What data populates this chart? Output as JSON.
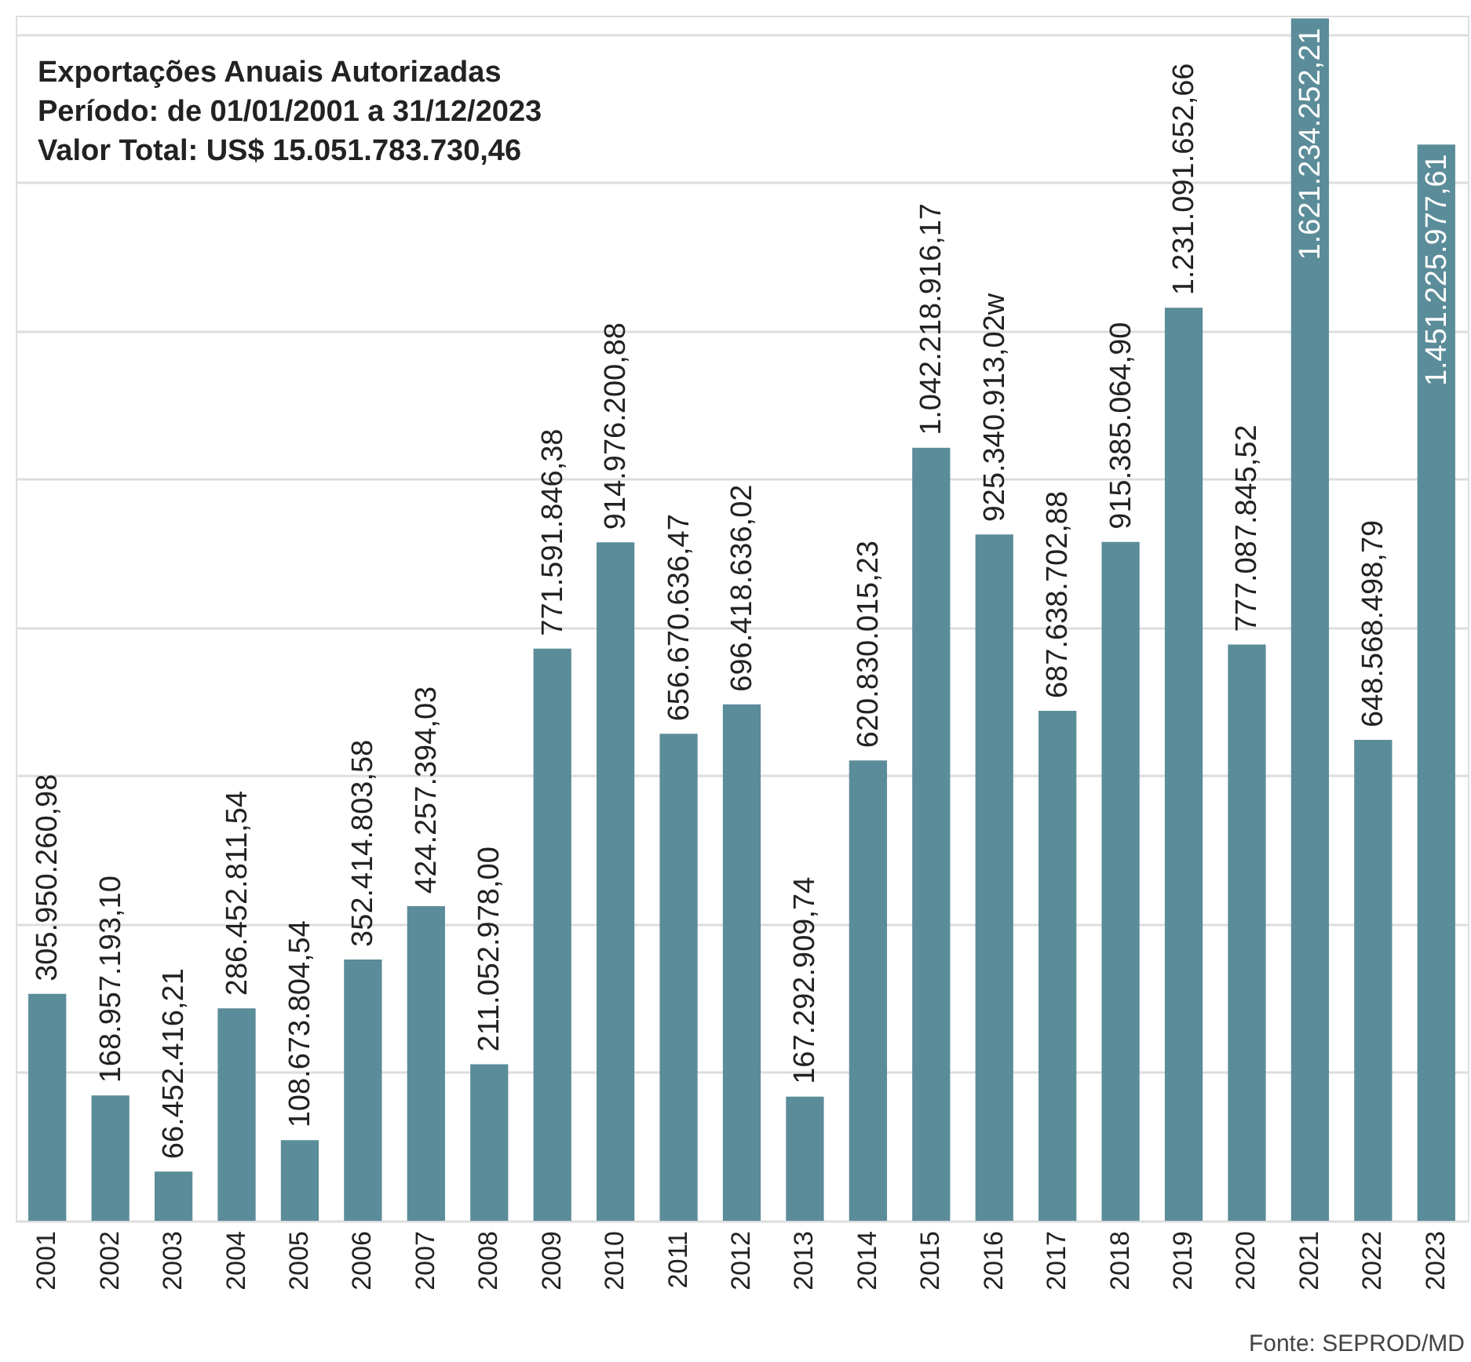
{
  "chart_data": {
    "type": "bar",
    "title": "Exportações Anuais Autorizadas",
    "subtitle": "Período: de 01/01/2001 a 31/12/2023\nValor Total: US$ 15.051.783.730,46",
    "categories": [
      "2001",
      "2002",
      "2003",
      "2004",
      "2005",
      "2006",
      "2007",
      "2008",
      "2009",
      "2010",
      "2011",
      "2012",
      "2013",
      "2014",
      "2015",
      "2016",
      "2017",
      "2018",
      "2019",
      "2020",
      "2021",
      "2022",
      "2023"
    ],
    "values": [
      305950260.98,
      168957193.1,
      66452416.21,
      286452811.54,
      108673804.54,
      352414803.58,
      424257394.03,
      211052978.0,
      771591846.38,
      914976200.88,
      656670636.47,
      696418636.02,
      167292909.74,
      620830015.23,
      1042218916.17,
      925340913.02,
      687638702.88,
      915385064.9,
      1231091652.66,
      777087845.52,
      1621234252.21,
      648568498.79,
      1451225977.61
    ],
    "value_labels": [
      "305.950.260,98",
      "168.957.193,10",
      "66.452.416,21",
      "286.452.811,54",
      "108.673.804,54",
      "352.414.803,58",
      "424.257.394,03",
      "211.052.978,00",
      "771.591.846,38",
      "914.976.200,88",
      "656.670.636,47",
      "696.418.636,02",
      "167.292.909,74",
      "620.830.015,23",
      "1.042.218.916,17",
      "925.340.913,02w",
      "687.638.702,88",
      "915.385.064,90",
      "1.231.091.652,66",
      "777.087.845,52",
      "1.621.234.252,21",
      "648.568.498,79",
      "1.451.225.977,61"
    ],
    "color": "#5b8c99",
    "ylim": [
      0,
      1625000000
    ],
    "yticks": [
      {
        "value": 0,
        "label": null
      },
      {
        "value": 200000000,
        "label": null
      },
      {
        "value": 400000000,
        "label": null
      },
      {
        "value": 600000000,
        "label": null
      },
      {
        "value": 800000000,
        "label": null
      },
      {
        "value": 1000000000,
        "label": null
      },
      {
        "value": 1200000000,
        "label": null
      },
      {
        "value": 1400000000,
        "label": null
      },
      {
        "value": 1600000000,
        "label": null
      }
    ],
    "grid": "y",
    "tick_labels": "x",
    "annotations": [
      "Fonte: SEPROD/MD"
    ]
  }
}
